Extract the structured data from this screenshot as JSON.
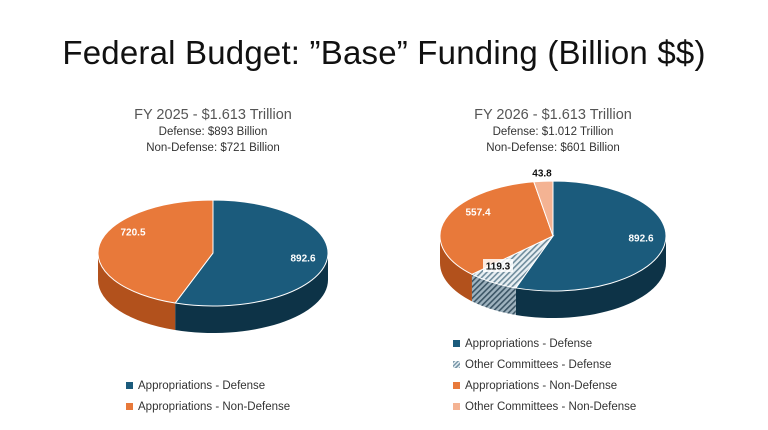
{
  "page_title": "Federal Budget: ”Base” Funding (Billion $$)",
  "colors": {
    "defense": "#1b5b7c",
    "defense_dark": "#0d3347",
    "non_defense": "#e8793a",
    "non_defense_dark": "#b2511c",
    "other_defense": "#dbe6ed",
    "other_defense_dark": "#5f7a8a",
    "other_non_defense": "#f4b393",
    "other_non_defense_dark": "#c78563"
  },
  "chart_data": [
    {
      "type": "pie",
      "title": "FY 2025 - $1.613 Trillion",
      "subtitle_lines": [
        "Defense: $893 Billion",
        "Non-Defense: $721 Billion"
      ],
      "slices": [
        {
          "name": "Appropriations - Defense",
          "value": 892.6,
          "label": "892.6",
          "color_key": "defense"
        },
        {
          "name": "Appropriations - Non-Defense",
          "value": 720.5,
          "label": "720.5",
          "color_key": "non_defense"
        }
      ],
      "legend": [
        "Appropriations - Defense",
        "Appropriations - Non-Defense"
      ],
      "legend_position": "bottom"
    },
    {
      "type": "pie",
      "title": "FY 2026 - $1.613 Trillion",
      "subtitle_lines": [
        "Defense: $1.012 Trillion",
        "Non-Defense: $601 Billion"
      ],
      "slices": [
        {
          "name": "Appropriations - Defense",
          "value": 892.6,
          "label": "892.6",
          "color_key": "defense"
        },
        {
          "name": "Other Committees - Defense",
          "value": 119.3,
          "label": "119.3",
          "color_key": "other_defense",
          "pattern": "hatch"
        },
        {
          "name": "Appropriations - Non-Defense",
          "value": 557.4,
          "label": "557.4",
          "color_key": "non_defense"
        },
        {
          "name": "Other Committees - Non-Defense",
          "value": 43.8,
          "label": "43.8",
          "color_key": "other_non_defense"
        }
      ],
      "legend": [
        "Appropriations - Defense",
        "Other Committees - Defense",
        "Appropriations - Non-Defense",
        "Other Committees - Non-Defense"
      ],
      "legend_position": "bottom"
    }
  ]
}
